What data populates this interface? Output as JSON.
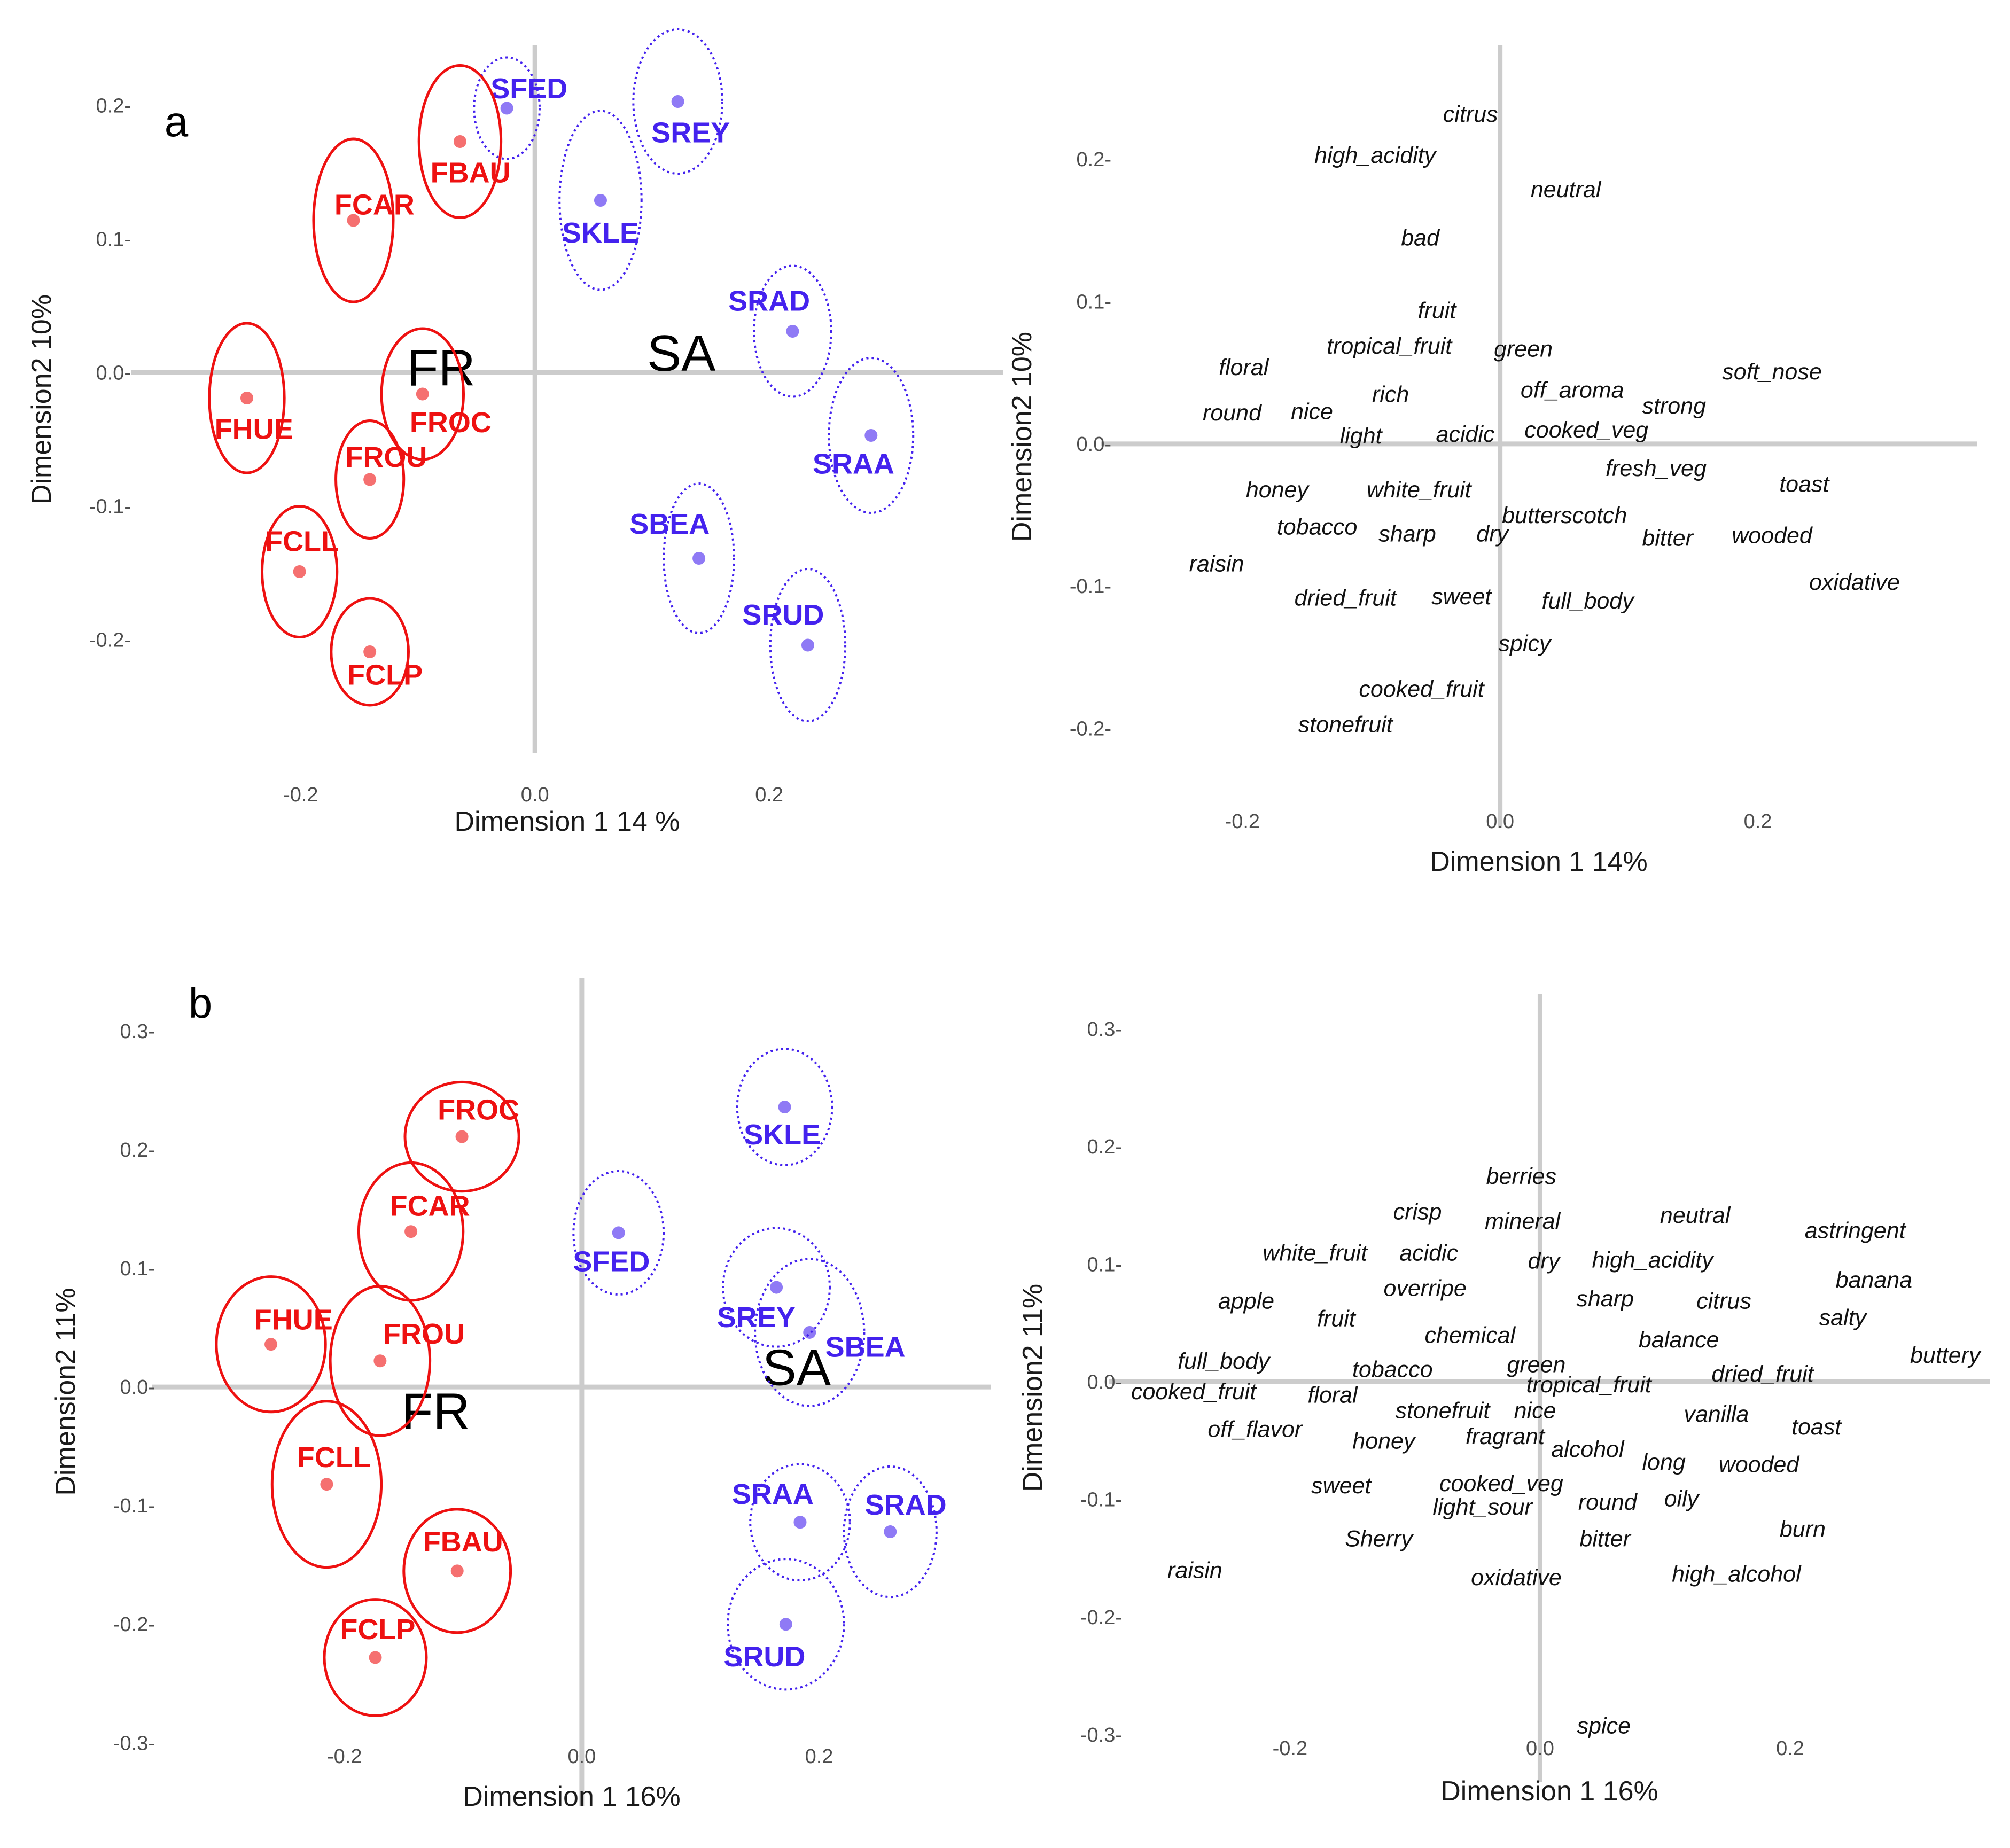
{
  "colors": {
    "FR": "#ee1111",
    "SA": "#4422ee",
    "axis_line": "#cccccc"
  },
  "chart_data": [
    {
      "id": "a_individuals",
      "type": "scatter",
      "panel_label": "a",
      "xlabel": "Dimension 1  14 %",
      "ylabel": "Dimension2 10%",
      "xlim": [
        -0.345,
        0.4
      ],
      "ylim": [
        -0.285,
        0.245
      ],
      "xticks": [
        -0.2,
        0.0,
        0.2
      ],
      "xtick_labels": [
        "-0.2",
        "0.0",
        "0.2"
      ],
      "yticks": [
        -0.2,
        -0.1,
        0.0,
        0.1,
        0.2
      ],
      "ytick_labels": [
        "-0.2-",
        "-0.1-",
        "0.0-",
        "0.1-",
        "0.2-"
      ],
      "group_labels": [
        {
          "text": "FR",
          "x": -0.08,
          "y": 0.004
        },
        {
          "text": "SA",
          "x": 0.125,
          "y": 0.015
        }
      ],
      "points": [
        {
          "label": "SFED",
          "group": "SA",
          "x": -0.024,
          "y": 0.198,
          "lx": -0.005,
          "ly": 0.213,
          "rx": 0.028,
          "ry": 0.038
        },
        {
          "label": "SREY",
          "group": "SA",
          "x": 0.122,
          "y": 0.203,
          "lx": 0.133,
          "ly": 0.18,
          "rx": 0.038,
          "ry": 0.054
        },
        {
          "label": "SKLE",
          "group": "SA",
          "x": 0.056,
          "y": 0.129,
          "lx": 0.056,
          "ly": 0.105,
          "rx": 0.035,
          "ry": 0.067
        },
        {
          "label": "SRAD",
          "group": "SA",
          "x": 0.22,
          "y": 0.031,
          "lx": 0.2,
          "ly": 0.054,
          "rx": 0.033,
          "ry": 0.049
        },
        {
          "label": "SRAA",
          "group": "SA",
          "x": 0.287,
          "y": -0.047,
          "lx": 0.272,
          "ly": -0.068,
          "rx": 0.036,
          "ry": 0.058
        },
        {
          "label": "SBEA",
          "group": "SA",
          "x": 0.14,
          "y": -0.139,
          "lx": 0.115,
          "ly": -0.113,
          "rx": 0.03,
          "ry": 0.056
        },
        {
          "label": "SRUD",
          "group": "SA",
          "x": 0.233,
          "y": -0.204,
          "lx": 0.212,
          "ly": -0.181,
          "rx": 0.032,
          "ry": 0.057
        },
        {
          "label": "FBAU",
          "group": "FR",
          "x": -0.064,
          "y": 0.173,
          "lx": -0.055,
          "ly": 0.15,
          "rx": 0.035,
          "ry": 0.057
        },
        {
          "label": "FCAR",
          "group": "FR",
          "x": -0.155,
          "y": 0.114,
          "lx": -0.137,
          "ly": 0.126,
          "rx": 0.034,
          "ry": 0.061
        },
        {
          "label": "FHUE",
          "group": "FR",
          "x": -0.246,
          "y": -0.019,
          "lx": -0.24,
          "ly": -0.042,
          "rx": 0.032,
          "ry": 0.056
        },
        {
          "label": "FROC",
          "group": "FR",
          "x": -0.096,
          "y": -0.016,
          "lx": -0.072,
          "ly": -0.037,
          "rx": 0.035,
          "ry": 0.049
        },
        {
          "label": "FROU",
          "group": "FR",
          "x": -0.141,
          "y": -0.08,
          "lx": -0.127,
          "ly": -0.063,
          "rx": 0.029,
          "ry": 0.044
        },
        {
          "label": "FCLL",
          "group": "FR",
          "x": -0.201,
          "y": -0.149,
          "lx": -0.199,
          "ly": -0.126,
          "rx": 0.032,
          "ry": 0.049
        },
        {
          "label": "FCLP",
          "group": "FR",
          "x": -0.141,
          "y": -0.209,
          "lx": -0.128,
          "ly": -0.226,
          "rx": 0.033,
          "ry": 0.04
        }
      ]
    },
    {
      "id": "a_variables",
      "type": "scatter",
      "xlabel": "Dimension 1 14%",
      "ylabel": "Dimension2 10%",
      "xlim": [
        -0.31,
        0.37
      ],
      "ylim": [
        -0.27,
        0.28
      ],
      "xticks": [
        -0.2,
        0.0,
        0.2
      ],
      "xtick_labels": [
        "-0.2",
        "0.0",
        "0.2"
      ],
      "yticks": [
        -0.2,
        -0.1,
        0.0,
        0.1,
        0.2
      ],
      "ytick_labels": [
        "-0.2-",
        "-0.1-",
        "0.0-",
        "0.1-",
        "0.2-"
      ],
      "labels": [
        {
          "text": "citrus",
          "x": -0.023,
          "y": 0.232
        },
        {
          "text": "high_acidity",
          "x": -0.097,
          "y": 0.203
        },
        {
          "text": "neutral",
          "x": 0.051,
          "y": 0.179
        },
        {
          "text": "bad",
          "x": -0.062,
          "y": 0.145
        },
        {
          "text": "fruit",
          "x": -0.049,
          "y": 0.094
        },
        {
          "text": "tropical_fruit",
          "x": -0.086,
          "y": 0.069
        },
        {
          "text": "green",
          "x": 0.018,
          "y": 0.067
        },
        {
          "text": "floral",
          "x": -0.199,
          "y": 0.054
        },
        {
          "text": "soft_nose",
          "x": 0.211,
          "y": 0.051
        },
        {
          "text": "off_aroma",
          "x": 0.056,
          "y": 0.038
        },
        {
          "text": "rich",
          "x": -0.085,
          "y": 0.035
        },
        {
          "text": "strong",
          "x": 0.135,
          "y": 0.027
        },
        {
          "text": "round",
          "x": -0.208,
          "y": 0.022
        },
        {
          "text": "nice",
          "x": -0.146,
          "y": 0.023
        },
        {
          "text": "light",
          "x": -0.108,
          "y": 0.006
        },
        {
          "text": "acidic",
          "x": -0.027,
          "y": 0.007
        },
        {
          "text": "cooked_veg",
          "x": 0.067,
          "y": 0.01
        },
        {
          "text": "fresh_veg",
          "x": 0.121,
          "y": -0.017
        },
        {
          "text": "toast",
          "x": 0.236,
          "y": -0.028
        },
        {
          "text": "honey",
          "x": -0.173,
          "y": -0.032
        },
        {
          "text": "white_fruit",
          "x": -0.063,
          "y": -0.032
        },
        {
          "text": "butterscotch",
          "x": 0.05,
          "y": -0.05
        },
        {
          "text": "tobacco",
          "x": -0.142,
          "y": -0.058
        },
        {
          "text": "sharp",
          "x": -0.072,
          "y": -0.063
        },
        {
          "text": "dry",
          "x": -0.006,
          "y": -0.063
        },
        {
          "text": "bitter",
          "x": 0.13,
          "y": -0.066
        },
        {
          "text": "wooded",
          "x": 0.211,
          "y": -0.064
        },
        {
          "text": "raisin",
          "x": -0.22,
          "y": -0.084
        },
        {
          "text": "oxidative",
          "x": 0.275,
          "y": -0.097
        },
        {
          "text": "dried_fruit",
          "x": -0.12,
          "y": -0.108
        },
        {
          "text": "sweet",
          "x": -0.03,
          "y": -0.107
        },
        {
          "text": "full_body",
          "x": 0.068,
          "y": -0.11
        },
        {
          "text": "spicy",
          "x": 0.019,
          "y": -0.14
        },
        {
          "text": "cooked_fruit",
          "x": -0.061,
          "y": -0.172
        },
        {
          "text": "stonefruit",
          "x": -0.12,
          "y": -0.197
        }
      ]
    },
    {
      "id": "b_individuals",
      "type": "scatter",
      "panel_label": "b",
      "xlabel": "Dimension 1 16%",
      "ylabel": "Dimension2  11%",
      "xlim": [
        -0.362,
        0.345
      ],
      "ylim": [
        -0.353,
        0.345
      ],
      "xticks": [
        -0.2,
        0.0,
        0.2
      ],
      "xtick_labels": [
        "-0.2",
        "0.0",
        "0.2"
      ],
      "yticks": [
        -0.3,
        -0.2,
        -0.1,
        0.0,
        0.1,
        0.2,
        0.3
      ],
      "ytick_labels": [
        "-0.3-",
        "-0.2-",
        "-0.1-",
        "0.0-",
        "0.1-",
        "0.2-",
        "0.3-"
      ],
      "group_labels": [
        {
          "text": "FR",
          "x": -0.123,
          "y": -0.02
        },
        {
          "text": "SA",
          "x": 0.181,
          "y": 0.017
        }
      ],
      "points": [
        {
          "label": "SKLE",
          "group": "SA",
          "x": 0.171,
          "y": 0.236,
          "lx": 0.169,
          "ly": 0.213,
          "rx": 0.04,
          "ry": 0.049
        },
        {
          "label": "SFED",
          "group": "SA",
          "x": 0.031,
          "y": 0.13,
          "lx": 0.025,
          "ly": 0.106,
          "rx": 0.038,
          "ry": 0.052
        },
        {
          "label": "SREY",
          "group": "SA",
          "x": 0.164,
          "y": 0.084,
          "lx": 0.147,
          "ly": 0.059,
          "rx": 0.045,
          "ry": 0.05
        },
        {
          "label": "SBEA",
          "group": "SA",
          "x": 0.192,
          "y": 0.046,
          "lx": 0.239,
          "ly": 0.034,
          "rx": 0.046,
          "ry": 0.062
        },
        {
          "label": "SRAA",
          "group": "SA",
          "x": 0.184,
          "y": -0.114,
          "lx": 0.161,
          "ly": -0.09,
          "rx": 0.042,
          "ry": 0.049
        },
        {
          "label": "SRAD",
          "group": "SA",
          "x": 0.26,
          "y": -0.122,
          "lx": 0.273,
          "ly": -0.099,
          "rx": 0.039,
          "ry": 0.055
        },
        {
          "label": "SRUD",
          "group": "SA",
          "x": 0.172,
          "y": -0.2,
          "lx": 0.154,
          "ly": -0.227,
          "rx": 0.049,
          "ry": 0.055
        },
        {
          "label": "FROC",
          "group": "FR",
          "x": -0.101,
          "y": 0.211,
          "lx": -0.087,
          "ly": 0.234,
          "rx": 0.048,
          "ry": 0.046
        },
        {
          "label": "FCAR",
          "group": "FR",
          "x": -0.144,
          "y": 0.131,
          "lx": -0.128,
          "ly": 0.153,
          "rx": 0.044,
          "ry": 0.058
        },
        {
          "label": "FHUE",
          "group": "FR",
          "x": -0.262,
          "y": 0.036,
          "lx": -0.243,
          "ly": 0.057,
          "rx": 0.046,
          "ry": 0.057
        },
        {
          "label": "FROU",
          "group": "FR",
          "x": -0.17,
          "y": 0.022,
          "lx": -0.133,
          "ly": 0.045,
          "rx": 0.042,
          "ry": 0.063
        },
        {
          "label": "FCLL",
          "group": "FR",
          "x": -0.215,
          "y": -0.082,
          "lx": -0.209,
          "ly": -0.059,
          "rx": 0.046,
          "ry": 0.07
        },
        {
          "label": "FBAU",
          "group": "FR",
          "x": -0.105,
          "y": -0.155,
          "lx": -0.1,
          "ly": -0.13,
          "rx": 0.045,
          "ry": 0.052
        },
        {
          "label": "FCLP",
          "group": "FR",
          "x": -0.174,
          "y": -0.228,
          "lx": -0.172,
          "ly": -0.204,
          "rx": 0.043,
          "ry": 0.049
        }
      ]
    },
    {
      "id": "b_variables",
      "type": "scatter",
      "xlabel": "Dimension 1   16%",
      "ylabel": "Dimension2  11%",
      "xlim": [
        -0.345,
        0.36
      ],
      "ylim": [
        -0.34,
        0.33
      ],
      "xticks": [
        -0.2,
        0.0,
        0.2
      ],
      "xtick_labels": [
        "-0.2",
        "0.0",
        "0.2"
      ],
      "yticks": [
        -0.3,
        -0.2,
        -0.1,
        0.0,
        0.1,
        0.2,
        0.3
      ],
      "ytick_labels": [
        "-0.3-",
        "-0.2-",
        "-0.1-",
        "0.0-",
        "0.1-",
        "0.2-",
        "0.3-"
      ],
      "labels": [
        {
          "text": "berries",
          "x": -0.015,
          "y": 0.175
        },
        {
          "text": "crisp",
          "x": -0.098,
          "y": 0.145
        },
        {
          "text": "mineral",
          "x": -0.014,
          "y": 0.137
        },
        {
          "text": "neutral",
          "x": 0.124,
          "y": 0.142
        },
        {
          "text": "astringent",
          "x": 0.252,
          "y": 0.129
        },
        {
          "text": "white_fruit",
          "x": -0.18,
          "y": 0.11
        },
        {
          "text": "acidic",
          "x": -0.089,
          "y": 0.11
        },
        {
          "text": "dry",
          "x": 0.003,
          "y": 0.103
        },
        {
          "text": "high_acidity",
          "x": 0.09,
          "y": 0.104
        },
        {
          "text": "banana",
          "x": 0.267,
          "y": 0.087
        },
        {
          "text": "apple",
          "x": -0.235,
          "y": 0.069
        },
        {
          "text": "overripe",
          "x": -0.092,
          "y": 0.08
        },
        {
          "text": "sharp",
          "x": 0.052,
          "y": 0.071
        },
        {
          "text": "citrus",
          "x": 0.147,
          "y": 0.069
        },
        {
          "text": "salty",
          "x": 0.242,
          "y": 0.055
        },
        {
          "text": "fruit",
          "x": -0.163,
          "y": 0.054
        },
        {
          "text": "chemical",
          "x": -0.056,
          "y": 0.04
        },
        {
          "text": "balance",
          "x": 0.111,
          "y": 0.036
        },
        {
          "text": "buttery",
          "x": 0.324,
          "y": 0.023
        },
        {
          "text": "full_body",
          "x": -0.253,
          "y": 0.018
        },
        {
          "text": "tobacco",
          "x": -0.118,
          "y": 0.011
        },
        {
          "text": "green",
          "x": -0.003,
          "y": 0.015
        },
        {
          "text": "dried_fruit",
          "x": 0.178,
          "y": 0.007
        },
        {
          "text": "cooked_fruit",
          "x": -0.277,
          "y": -0.008
        },
        {
          "text": "floral",
          "x": -0.166,
          "y": -0.011
        },
        {
          "text": "tropical_fruit",
          "x": 0.039,
          "y": -0.002
        },
        {
          "text": "stonefruit",
          "x": -0.078,
          "y": -0.024
        },
        {
          "text": "nice",
          "x": -0.004,
          "y": -0.024
        },
        {
          "text": "vanilla",
          "x": 0.141,
          "y": -0.027
        },
        {
          "text": "toast",
          "x": 0.221,
          "y": -0.038
        },
        {
          "text": "off_flavor",
          "x": -0.228,
          "y": -0.04
        },
        {
          "text": "fragrant",
          "x": -0.028,
          "y": -0.046
        },
        {
          "text": "honey",
          "x": -0.125,
          "y": -0.05
        },
        {
          "text": "alcohol",
          "x": 0.038,
          "y": -0.057
        },
        {
          "text": "long",
          "x": 0.099,
          "y": -0.068
        },
        {
          "text": "wooded",
          "x": 0.175,
          "y": -0.07
        },
        {
          "text": "sweet",
          "x": -0.159,
          "y": -0.088
        },
        {
          "text": "cooked_veg",
          "x": -0.031,
          "y": -0.086
        },
        {
          "text": "light_sour",
          "x": -0.046,
          "y": -0.106
        },
        {
          "text": "round",
          "x": 0.054,
          "y": -0.102
        },
        {
          "text": "oily",
          "x": 0.113,
          "y": -0.099
        },
        {
          "text": "burn",
          "x": 0.21,
          "y": -0.125
        },
        {
          "text": "Sherry",
          "x": -0.129,
          "y": -0.133
        },
        {
          "text": "bitter",
          "x": 0.052,
          "y": -0.133
        },
        {
          "text": "raisin",
          "x": -0.276,
          "y": -0.16
        },
        {
          "text": "oxidative",
          "x": -0.019,
          "y": -0.166
        },
        {
          "text": "high_alcohol",
          "x": 0.157,
          "y": -0.163
        },
        {
          "text": "spice",
          "x": 0.051,
          "y": -0.292
        }
      ]
    }
  ]
}
